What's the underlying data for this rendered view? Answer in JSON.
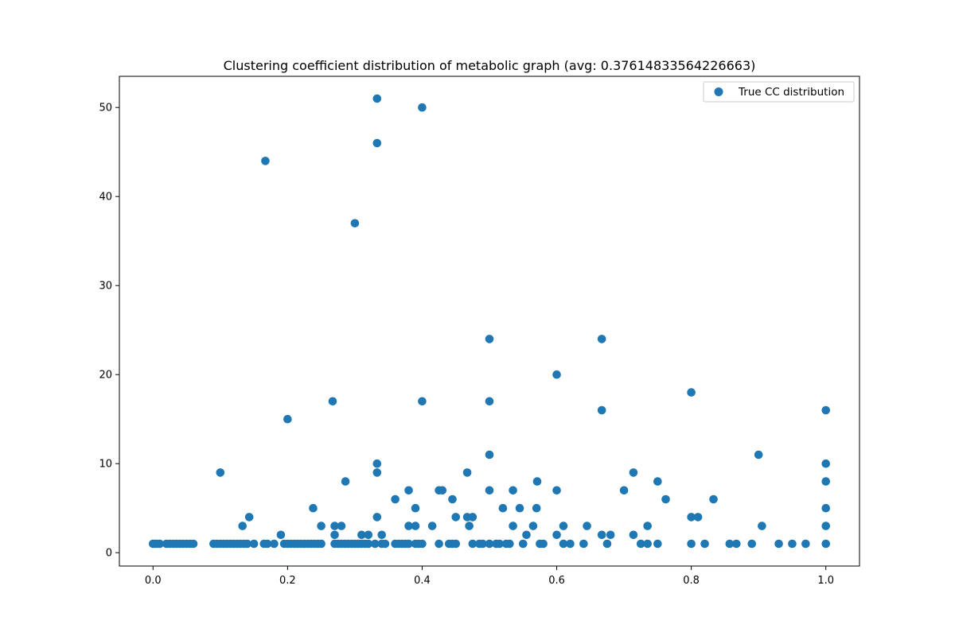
{
  "chart_data": {
    "type": "scatter",
    "title": "Clustering coefficient distribution of metabolic graph (avg: 0.37614833564226663)",
    "xlabel": "",
    "ylabel": "",
    "xlim": [
      -0.05,
      1.05
    ],
    "ylim": [
      -1.5,
      53.5
    ],
    "x_ticks": [
      0.0,
      0.2,
      0.4,
      0.6,
      0.8,
      1.0
    ],
    "x_tick_labels": [
      "0.0",
      "0.2",
      "0.4",
      "0.6",
      "0.8",
      "1.0"
    ],
    "y_ticks": [
      0,
      10,
      20,
      30,
      40,
      50
    ],
    "y_tick_labels": [
      "0",
      "10",
      "20",
      "30",
      "40",
      "50"
    ],
    "grid": false,
    "legend_position": "top-right",
    "marker_color": "#1f77b4",
    "series": [
      {
        "name": "True CC distribution",
        "points": [
          [
            0.0,
            1
          ],
          [
            0.003,
            1
          ],
          [
            0.006,
            1
          ],
          [
            0.01,
            1
          ],
          [
            0.02,
            1
          ],
          [
            0.025,
            1
          ],
          [
            0.03,
            1
          ],
          [
            0.035,
            1
          ],
          [
            0.04,
            1
          ],
          [
            0.045,
            1
          ],
          [
            0.05,
            1
          ],
          [
            0.055,
            1
          ],
          [
            0.06,
            1
          ],
          [
            0.09,
            1
          ],
          [
            0.095,
            1
          ],
          [
            0.1,
            1
          ],
          [
            0.105,
            1
          ],
          [
            0.11,
            1
          ],
          [
            0.115,
            1
          ],
          [
            0.12,
            1
          ],
          [
            0.125,
            1
          ],
          [
            0.13,
            1
          ],
          [
            0.135,
            1
          ],
          [
            0.14,
            1
          ],
          [
            0.15,
            1
          ],
          [
            0.165,
            1
          ],
          [
            0.17,
            1
          ],
          [
            0.18,
            1
          ],
          [
            0.195,
            1
          ],
          [
            0.2,
            1
          ],
          [
            0.205,
            1
          ],
          [
            0.21,
            1
          ],
          [
            0.215,
            1
          ],
          [
            0.22,
            1
          ],
          [
            0.225,
            1
          ],
          [
            0.23,
            1
          ],
          [
            0.235,
            1
          ],
          [
            0.24,
            1
          ],
          [
            0.245,
            1
          ],
          [
            0.25,
            1
          ],
          [
            0.27,
            1
          ],
          [
            0.275,
            1
          ],
          [
            0.28,
            1
          ],
          [
            0.285,
            1
          ],
          [
            0.29,
            1
          ],
          [
            0.295,
            1
          ],
          [
            0.3,
            1
          ],
          [
            0.305,
            1
          ],
          [
            0.31,
            1
          ],
          [
            0.315,
            1
          ],
          [
            0.32,
            1
          ],
          [
            0.33,
            1
          ],
          [
            0.34,
            1
          ],
          [
            0.345,
            1
          ],
          [
            0.36,
            1
          ],
          [
            0.365,
            1
          ],
          [
            0.37,
            1
          ],
          [
            0.375,
            1
          ],
          [
            0.38,
            1
          ],
          [
            0.39,
            1
          ],
          [
            0.395,
            1
          ],
          [
            0.4,
            1
          ],
          [
            0.425,
            1
          ],
          [
            0.44,
            1
          ],
          [
            0.445,
            1
          ],
          [
            0.45,
            1
          ],
          [
            0.475,
            1
          ],
          [
            0.485,
            1
          ],
          [
            0.49,
            1
          ],
          [
            0.5,
            1
          ],
          [
            0.51,
            1
          ],
          [
            0.515,
            1
          ],
          [
            0.525,
            1
          ],
          [
            0.53,
            1
          ],
          [
            0.55,
            1
          ],
          [
            0.575,
            1
          ],
          [
            0.58,
            1
          ],
          [
            0.61,
            1
          ],
          [
            0.62,
            1
          ],
          [
            0.64,
            1
          ],
          [
            0.675,
            1
          ],
          [
            0.725,
            1
          ],
          [
            0.735,
            1
          ],
          [
            0.75,
            1
          ],
          [
            0.8,
            1
          ],
          [
            0.82,
            1
          ],
          [
            0.857,
            1
          ],
          [
            0.867,
            1
          ],
          [
            0.89,
            1
          ],
          [
            0.93,
            1
          ],
          [
            0.95,
            1
          ],
          [
            0.97,
            1
          ],
          [
            1.0,
            1
          ],
          [
            0.19,
            2
          ],
          [
            0.27,
            2
          ],
          [
            0.31,
            2
          ],
          [
            0.32,
            2
          ],
          [
            0.34,
            2
          ],
          [
            0.555,
            2
          ],
          [
            0.6,
            2
          ],
          [
            0.667,
            2
          ],
          [
            0.68,
            2
          ],
          [
            0.714,
            2
          ],
          [
            0.133,
            3
          ],
          [
            0.25,
            3
          ],
          [
            0.27,
            3
          ],
          [
            0.28,
            3
          ],
          [
            0.38,
            3
          ],
          [
            0.39,
            3
          ],
          [
            0.415,
            3
          ],
          [
            0.47,
            3
          ],
          [
            0.535,
            3
          ],
          [
            0.565,
            3
          ],
          [
            0.61,
            3
          ],
          [
            0.645,
            3
          ],
          [
            0.735,
            3
          ],
          [
            0.905,
            3
          ],
          [
            1.0,
            3
          ],
          [
            0.143,
            4
          ],
          [
            0.333,
            4
          ],
          [
            0.45,
            4
          ],
          [
            0.467,
            4
          ],
          [
            0.475,
            4
          ],
          [
            0.8,
            4
          ],
          [
            0.81,
            4
          ],
          [
            0.238,
            5
          ],
          [
            0.39,
            5
          ],
          [
            0.52,
            5
          ],
          [
            0.545,
            5
          ],
          [
            0.57,
            5
          ],
          [
            1.0,
            5
          ],
          [
            0.36,
            6
          ],
          [
            0.445,
            6
          ],
          [
            0.762,
            6
          ],
          [
            0.833,
            6
          ],
          [
            0.38,
            7
          ],
          [
            0.425,
            7
          ],
          [
            0.43,
            7
          ],
          [
            0.5,
            7
          ],
          [
            0.535,
            7
          ],
          [
            0.6,
            7
          ],
          [
            0.7,
            7
          ],
          [
            0.286,
            8
          ],
          [
            0.571,
            8
          ],
          [
            0.75,
            8
          ],
          [
            1.0,
            8
          ],
          [
            0.1,
            9
          ],
          [
            0.333,
            9
          ],
          [
            0.467,
            9
          ],
          [
            0.714,
            9
          ],
          [
            0.333,
            10
          ],
          [
            1.0,
            10
          ],
          [
            0.5,
            11
          ],
          [
            0.9,
            11
          ],
          [
            0.2,
            15
          ],
          [
            0.667,
            16
          ],
          [
            1.0,
            16
          ],
          [
            0.267,
            17
          ],
          [
            0.4,
            17
          ],
          [
            0.5,
            17
          ],
          [
            0.8,
            18
          ],
          [
            0.6,
            20
          ],
          [
            0.5,
            24
          ],
          [
            0.667,
            24
          ],
          [
            0.3,
            37
          ],
          [
            0.167,
            44
          ],
          [
            0.333,
            46
          ],
          [
            0.4,
            50
          ],
          [
            0.333,
            51
          ]
        ]
      }
    ]
  }
}
